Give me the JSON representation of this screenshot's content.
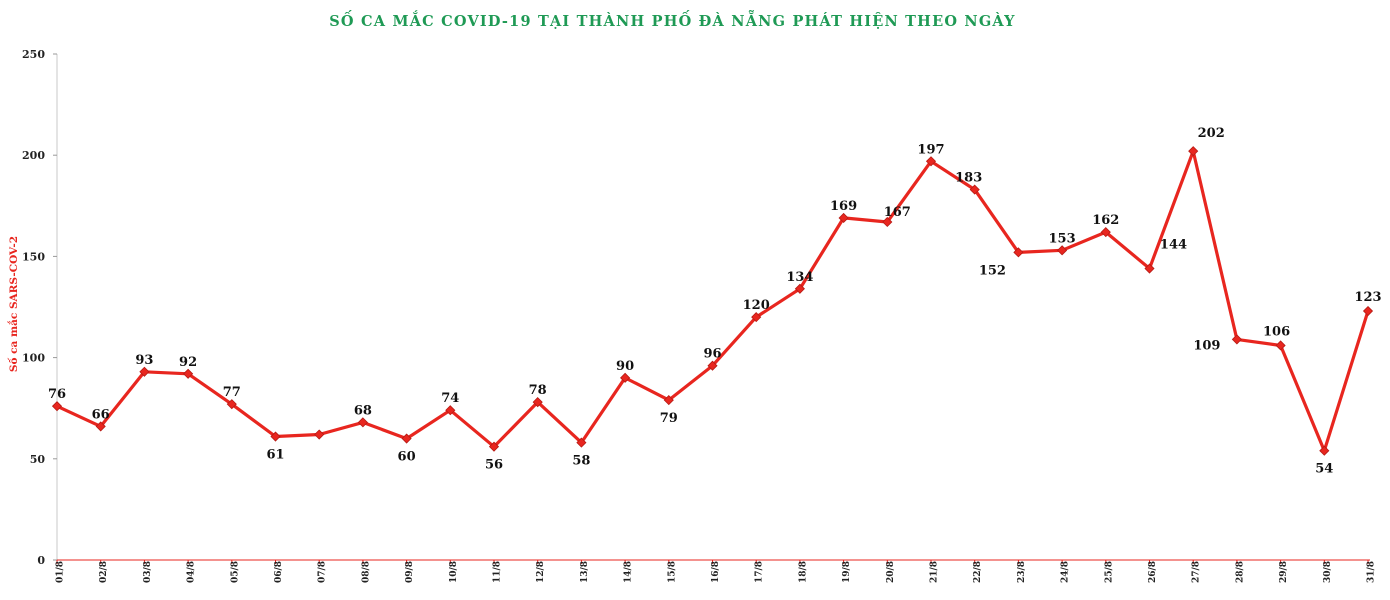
{
  "chart_data": {
    "type": "line",
    "title": "SỐ CA MẮC COVID-19 TẠI THÀNH PHỐ ĐÀ NẴNG PHÁT HIỆN THEO NGÀY",
    "xlabel": "",
    "ylabel": "Số ca mắc SARS-COV-2",
    "ylim": [
      0,
      250
    ],
    "yticks": [
      0,
      50,
      100,
      150,
      200,
      250
    ],
    "grid": false,
    "categories": [
      "01/8",
      "02/8",
      "03/8",
      "04/8",
      "05/8",
      "06/8",
      "07/8",
      "08/8",
      "09/8",
      "10/8",
      "11/8",
      "12/8",
      "13/8",
      "14/8",
      "15/8",
      "16/8",
      "17/8",
      "18/8",
      "19/8",
      "20/8",
      "21/8",
      "22/8",
      "23/8",
      "24/8",
      "25/8",
      "26/8",
      "27/8",
      "28/8",
      "29/8",
      "30/8",
      "31/8"
    ],
    "series": [
      {
        "values": [
          76,
          66,
          93,
          92,
          77,
          61,
          62,
          68,
          60,
          74,
          56,
          78,
          58,
          90,
          79,
          96,
          120,
          134,
          169,
          167,
          197,
          183,
          152,
          153,
          162,
          144,
          202,
          109,
          106,
          54,
          123
        ],
        "data_labels": [
          "76",
          "66",
          "93",
          "92",
          "77",
          "61",
          "",
          "68",
          "60",
          "74",
          "56",
          "78",
          "58",
          "90",
          "79",
          "96",
          "120",
          "134",
          "169",
          "167",
          "197",
          "183",
          "152",
          "153",
          "162",
          "144",
          "202",
          "109",
          "106",
          "54",
          "123"
        ],
        "color": "#e8261f"
      }
    ]
  }
}
